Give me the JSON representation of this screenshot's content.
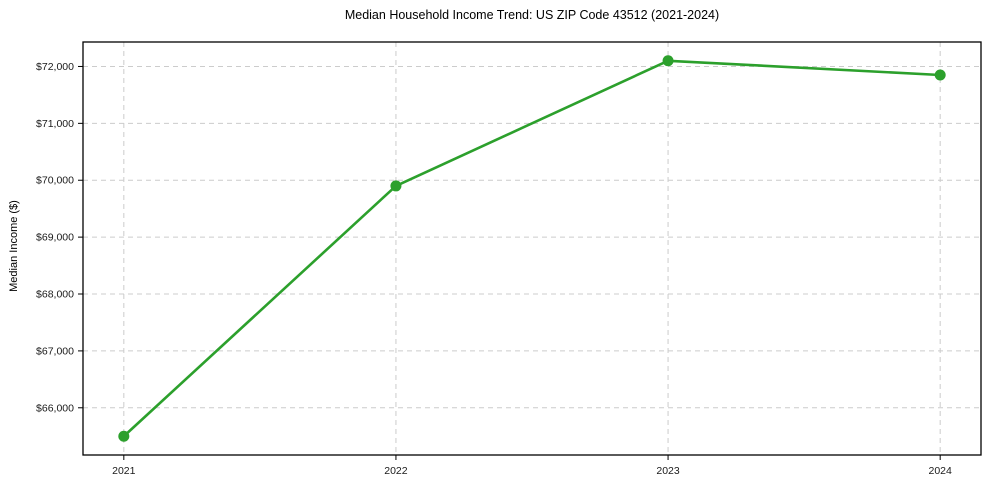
{
  "chart_data": {
    "type": "line",
    "title": "Median Household Income Trend: US ZIP Code 43512 (2021-2024)",
    "xlabel": "",
    "ylabel": "Median Income ($)",
    "x": [
      2021,
      2022,
      2023,
      2024
    ],
    "x_tick_labels": [
      "2021",
      "2022",
      "2023",
      "2024"
    ],
    "series": [
      {
        "name": "Median Household Income",
        "values": [
          65500,
          69900,
          72100,
          71850
        ],
        "color": "#2ca02c"
      }
    ],
    "y_ticks": [
      66000,
      67000,
      68000,
      69000,
      70000,
      71000,
      72000
    ],
    "y_tick_labels": [
      "$66,000",
      "$67,000",
      "$68,000",
      "$69,000",
      "$70,000",
      "$71,000",
      "$72,000"
    ],
    "xlim": [
      2020.85,
      2024.15
    ],
    "ylim": [
      65170,
      72430
    ],
    "grid": true,
    "grid_style": "dashed",
    "grid_color": "#cccccc",
    "frame_color": "#000000",
    "marker": "circle",
    "legend_position": "none"
  }
}
